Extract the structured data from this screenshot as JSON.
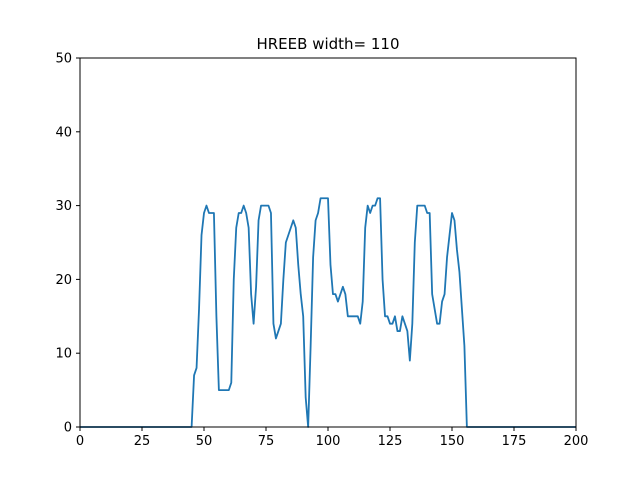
{
  "chart_data": {
    "type": "line",
    "title": "HREEB width= 110",
    "xlabel": "",
    "ylabel": "",
    "xlim": [
      0,
      200
    ],
    "ylim": [
      0,
      50
    ],
    "xticks": [
      0,
      25,
      50,
      75,
      100,
      125,
      150,
      175,
      200
    ],
    "yticks": [
      0,
      10,
      20,
      30,
      40,
      50
    ],
    "grid": false,
    "series": [
      {
        "name": "HREEB",
        "color": "#1f77b4",
        "x": [
          0,
          45,
          46,
          47,
          48,
          49,
          50,
          51,
          52,
          53,
          54,
          55,
          56,
          57,
          58,
          59,
          60,
          61,
          62,
          63,
          64,
          65,
          66,
          67,
          68,
          69,
          70,
          71,
          72,
          73,
          74,
          75,
          76,
          77,
          78,
          79,
          80,
          81,
          82,
          83,
          84,
          85,
          86,
          87,
          88,
          89,
          90,
          91,
          92,
          93,
          94,
          95,
          96,
          97,
          98,
          99,
          100,
          101,
          102,
          103,
          104,
          105,
          106,
          107,
          108,
          109,
          110,
          111,
          112,
          113,
          114,
          115,
          116,
          117,
          118,
          119,
          120,
          121,
          122,
          123,
          124,
          125,
          126,
          127,
          128,
          129,
          130,
          131,
          132,
          133,
          134,
          135,
          136,
          137,
          138,
          139,
          140,
          141,
          142,
          143,
          144,
          145,
          146,
          147,
          148,
          149,
          150,
          151,
          152,
          153,
          154,
          155,
          156,
          200
        ],
        "y": [
          0,
          0,
          7,
          8,
          16,
          26,
          29,
          30,
          29,
          29,
          29,
          15,
          5,
          5,
          5,
          5,
          5,
          6,
          20,
          27,
          29,
          29,
          30,
          29,
          27,
          18,
          14,
          19,
          28,
          30,
          30,
          30,
          30,
          29,
          14,
          12,
          13,
          14,
          20,
          25,
          26,
          27,
          28,
          27,
          22,
          18,
          15,
          4,
          0,
          11,
          23,
          28,
          29,
          31,
          31,
          31,
          31,
          22,
          18,
          18,
          17,
          18,
          19,
          18,
          15,
          15,
          15,
          15,
          15,
          14,
          17,
          27,
          30,
          29,
          30,
          30,
          31,
          31,
          20,
          15,
          15,
          14,
          14,
          15,
          13,
          13,
          15,
          14,
          13,
          9,
          14,
          25,
          30,
          30,
          30,
          30,
          29,
          29,
          18,
          16,
          14,
          14,
          17,
          18,
          23,
          26,
          29,
          28,
          24,
          21,
          16,
          11,
          0,
          0
        ]
      }
    ]
  }
}
